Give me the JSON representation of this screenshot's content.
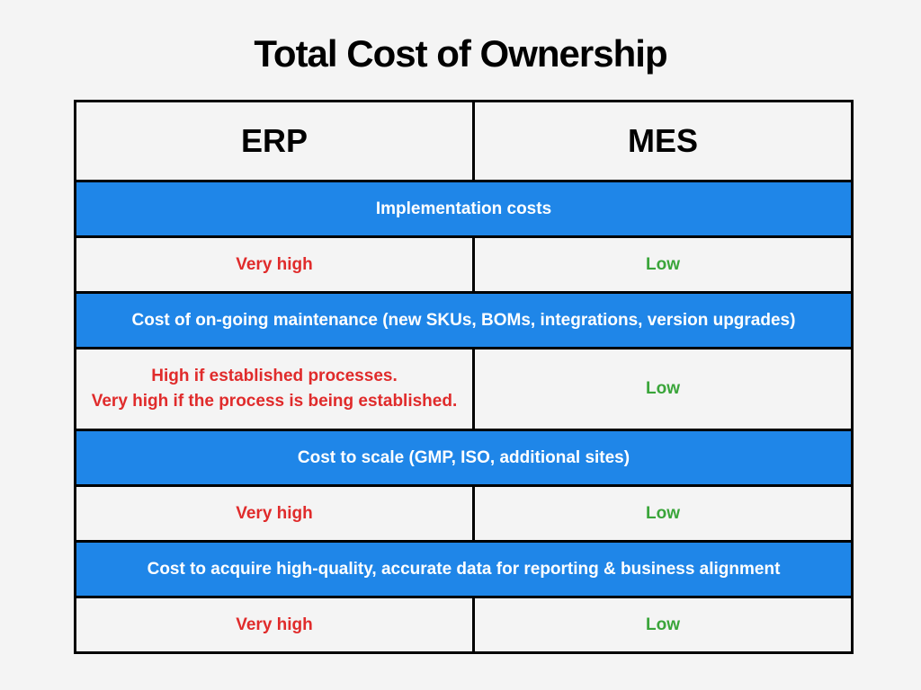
{
  "title": "Total Cost of Ownership",
  "columns": [
    "ERP",
    "MES"
  ],
  "colors": {
    "section_bg": "#1f86e8",
    "erp_text": "#e02b2b",
    "mes_text": "#3aa53a"
  },
  "rows": [
    {
      "section": "Implementation costs",
      "erp": [
        "Very high"
      ],
      "mes": "Low"
    },
    {
      "section": "Cost of on-going maintenance (new SKUs, BOMs, integrations, version upgrades)",
      "erp": [
        "High if established processes.",
        "Very high if the process is being established."
      ],
      "mes": "Low"
    },
    {
      "section": "Cost to scale (GMP, ISO, additional sites)",
      "erp": [
        "Very high"
      ],
      "mes": "Low"
    },
    {
      "section": "Cost to acquire high-quality, accurate data for reporting & business alignment",
      "erp": [
        "Very high"
      ],
      "mes": "Low"
    }
  ]
}
